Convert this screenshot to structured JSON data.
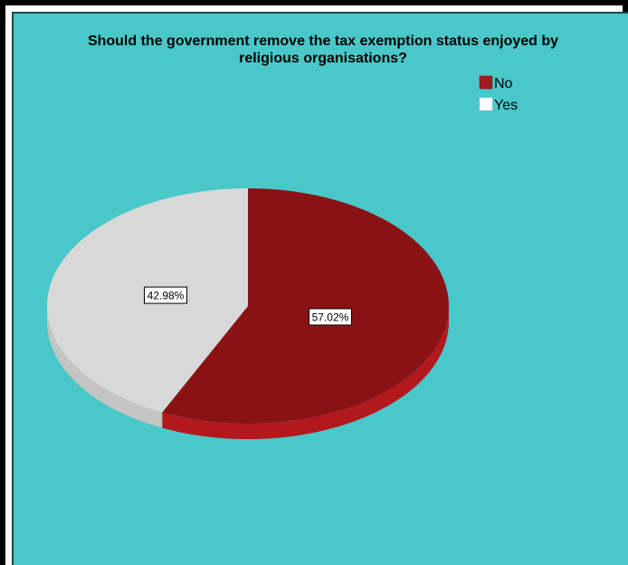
{
  "chart_data": {
    "type": "pie",
    "title_lines": [
      "Should the government remove the tax exemption status enjoyed by",
      "religious organisations?"
    ],
    "slices": [
      {
        "label": "No",
        "value": 57.02,
        "display": "57.02%",
        "color": "#8b1214",
        "side_color": "#b3191c"
      },
      {
        "label": "Yes",
        "value": 42.98,
        "display": "42.98%",
        "color": "#d8d8d8",
        "side_color": "#c4c4c4"
      }
    ],
    "legend": {
      "placement": "top-right",
      "items": [
        {
          "label": "No",
          "color": "#a51b1b"
        },
        {
          "label": "Yes",
          "color": "#ffffff"
        }
      ]
    },
    "style": "3d-tilted",
    "background_color": "#4ac7c9"
  }
}
